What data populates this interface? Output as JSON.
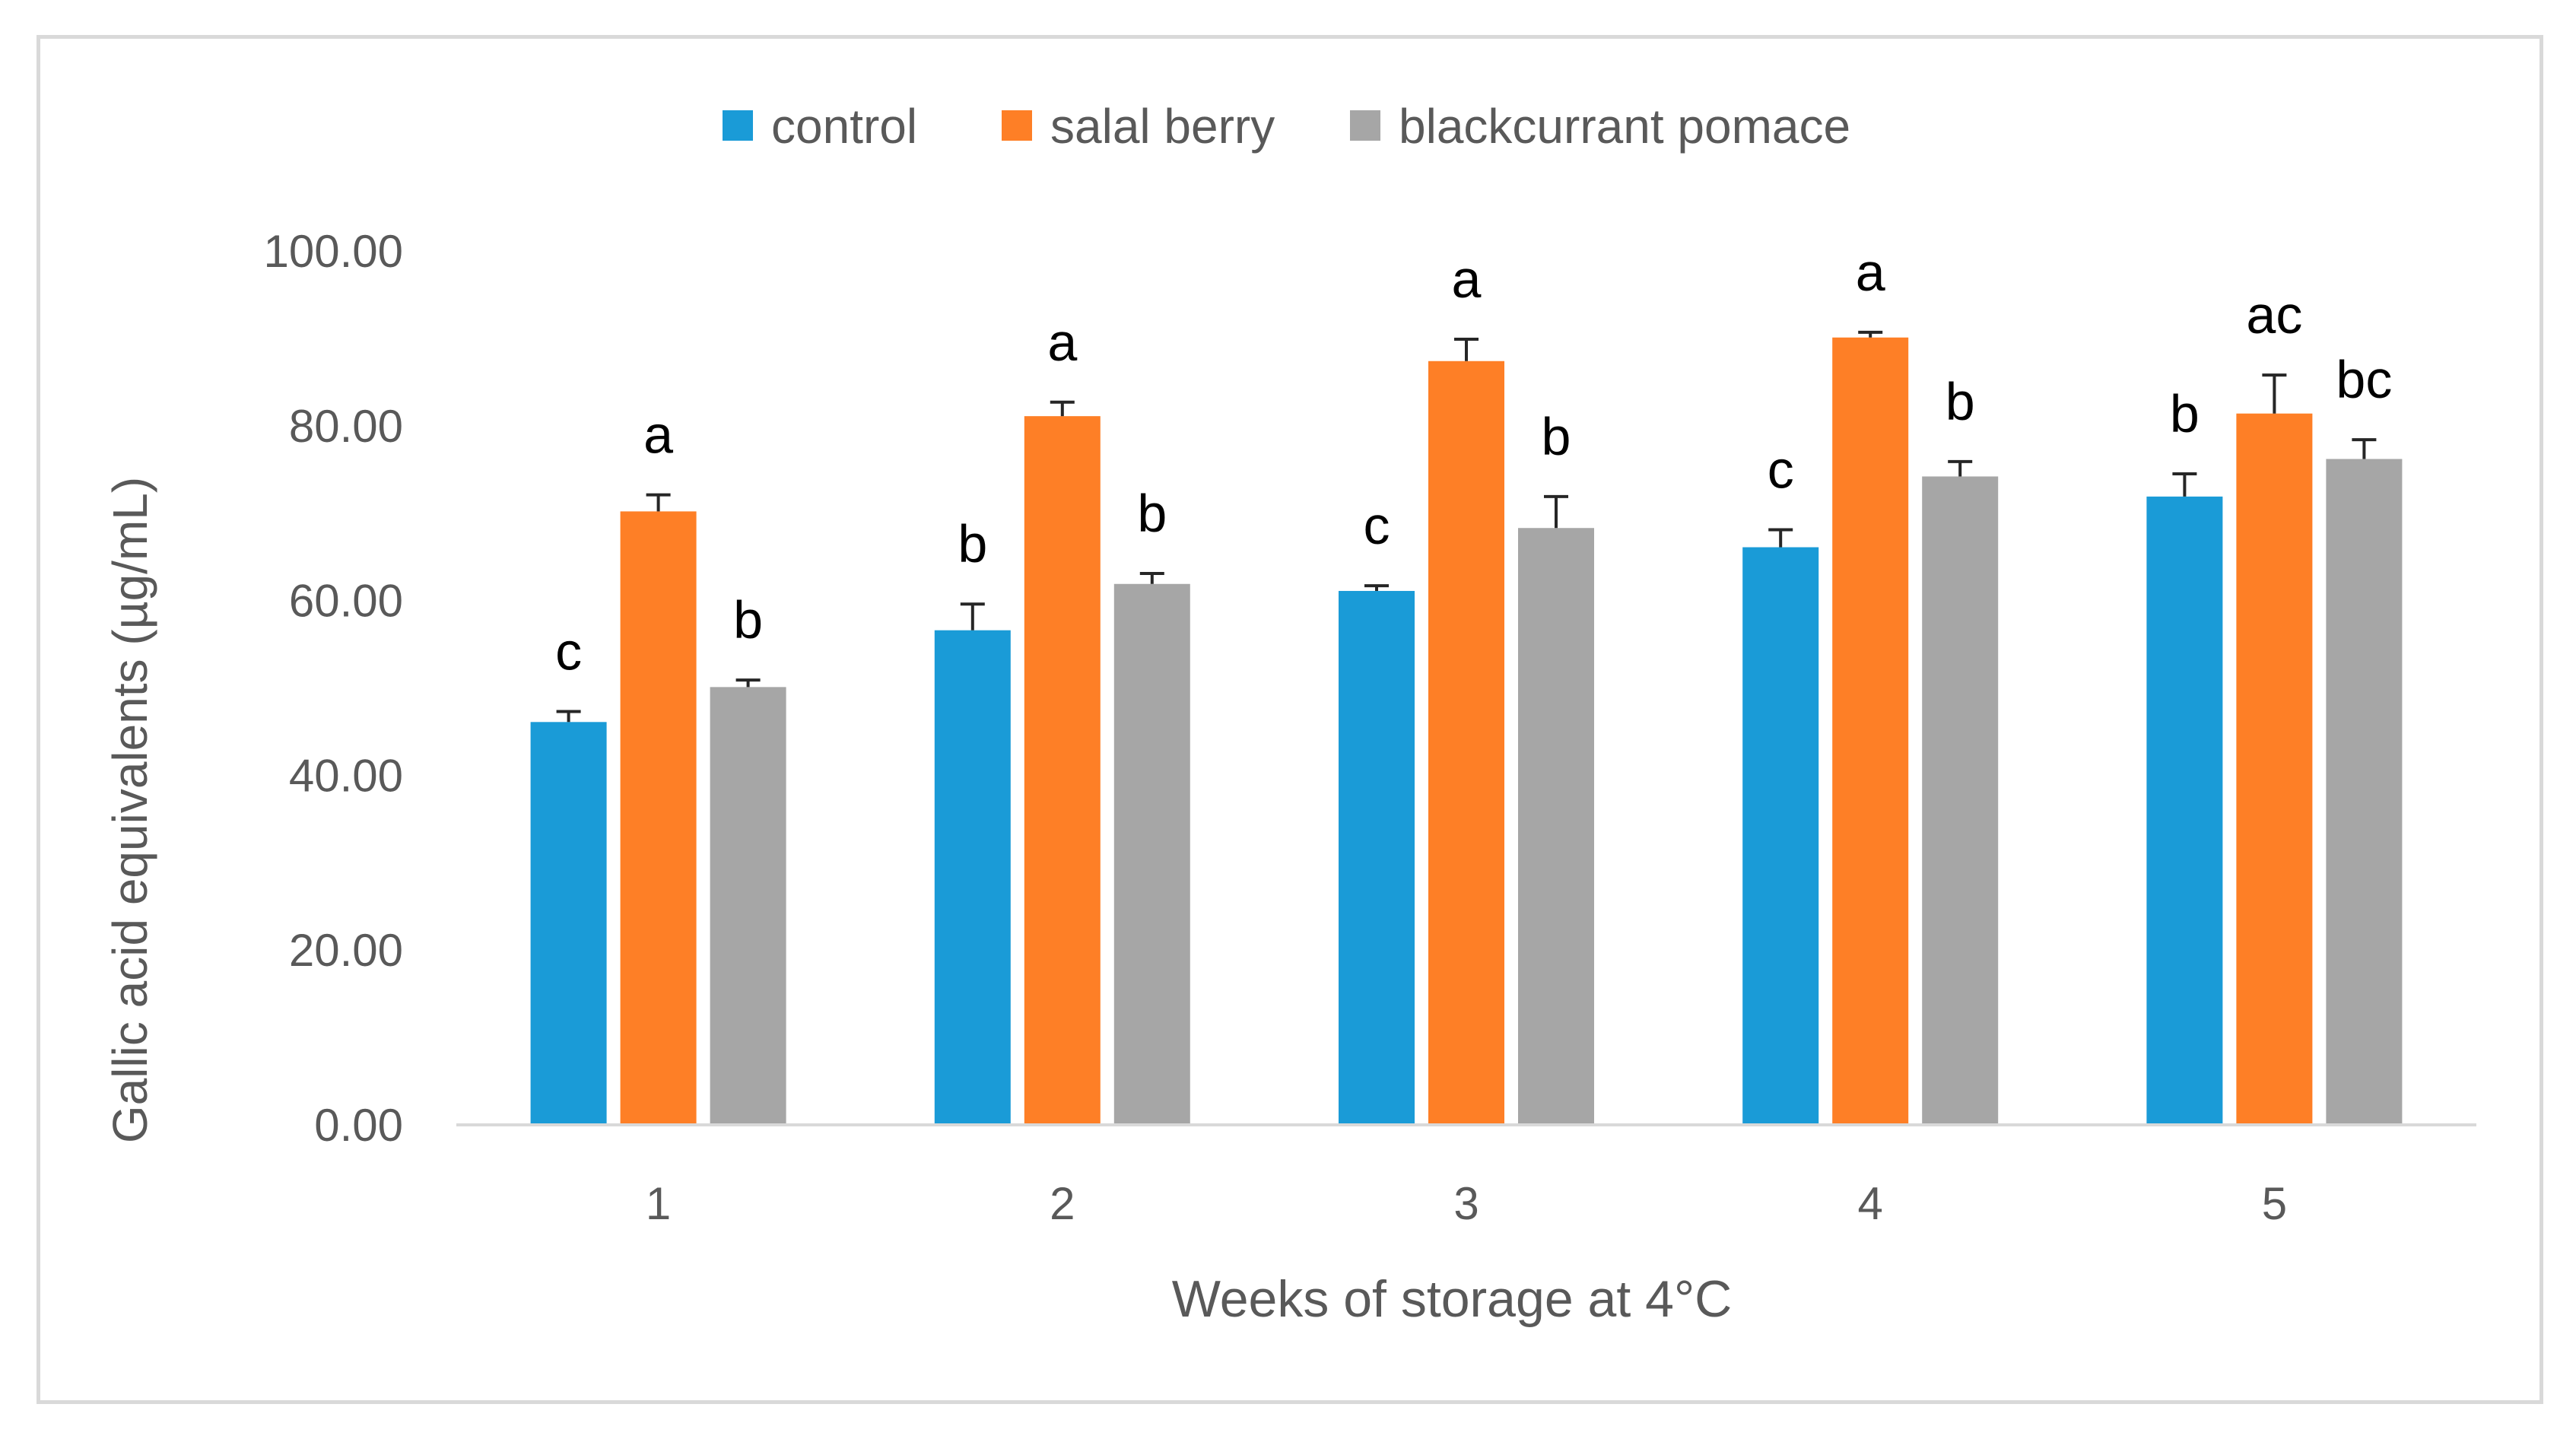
{
  "chart_data": {
    "type": "bar",
    "title": "",
    "xlabel": "Weeks of storage at 4°C",
    "ylabel": "Gallic acid equivalents (µg/mL)",
    "ylim": [
      0,
      100
    ],
    "yticks": [
      "0.00",
      "20.00",
      "40.00",
      "60.00",
      "80.00",
      "100.00"
    ],
    "ytick_values": [
      0,
      20,
      40,
      60,
      80,
      100
    ],
    "grid": false,
    "legend_position": "top-center",
    "categories": [
      "1",
      "2",
      "3",
      "4",
      "5"
    ],
    "series": [
      {
        "name": "control",
        "color": "#1a9bd7",
        "values": [
          46.1,
          56.6,
          61.1,
          66.1,
          71.9
        ],
        "errors": [
          1.2,
          3.0,
          0.6,
          2.0,
          2.6
        ],
        "letters": [
          "c",
          "b",
          "c",
          "c",
          "b"
        ]
      },
      {
        "name": "salal berry",
        "color": "#fe7f26",
        "values": [
          70.2,
          81.1,
          87.4,
          90.1,
          81.4
        ],
        "errors": [
          1.9,
          1.6,
          2.5,
          0.6,
          4.4
        ],
        "letters": [
          "a",
          "a",
          "a",
          "a",
          "ac"
        ]
      },
      {
        "name": "blackcurrant pomace",
        "color": "#a6a6a6",
        "values": [
          50.1,
          61.9,
          68.3,
          74.2,
          76.2
        ],
        "errors": [
          0.8,
          1.2,
          3.6,
          1.7,
          2.2
        ],
        "letters": [
          "b",
          "b",
          "b",
          "b",
          "bc"
        ]
      }
    ]
  }
}
